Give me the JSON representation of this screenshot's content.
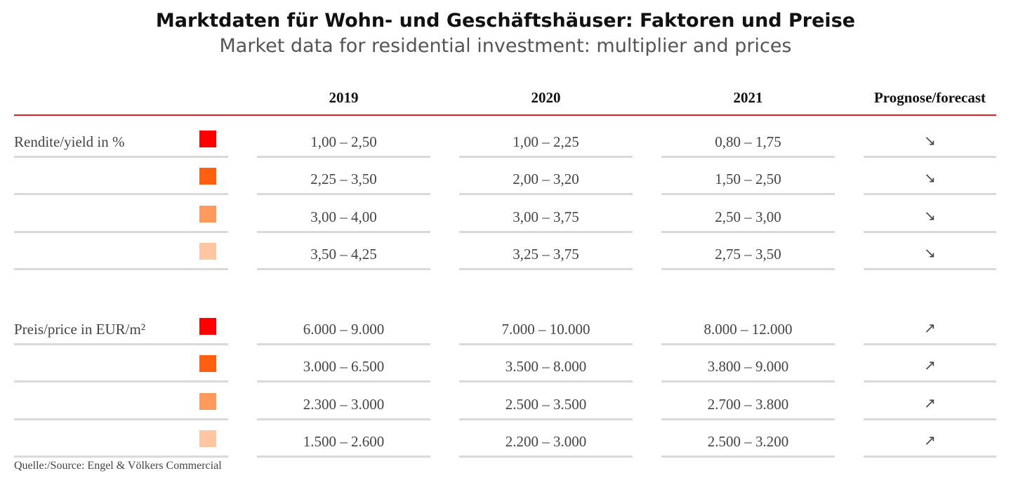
{
  "title": "Marktdaten für Wohn- und Geschäftshäuser: Faktoren und Preise",
  "subtitle": "Market data for residential investment: multiplier and prices",
  "columns": [
    "2019",
    "2020",
    "2021",
    "Prognose/forecast"
  ],
  "swatch_colors": [
    "#ff0000",
    "#ff5f0f",
    "#ff9a5c",
    "#ffc6a2"
  ],
  "sections": [
    {
      "label": "Rendite/yield in %",
      "rows": [
        {
          "values": [
            "1,00 – 2,50",
            "1,00 – 2,25",
            "0,80 – 1,75"
          ],
          "trend": "↘"
        },
        {
          "values": [
            "2,25 – 3,50",
            "2,00 – 3,20",
            "1,50 – 2,50"
          ],
          "trend": "↘"
        },
        {
          "values": [
            "3,00 – 4,00",
            "3,00 – 3,75",
            "2,50 – 3,00"
          ],
          "trend": "↘"
        },
        {
          "values": [
            "3,50 – 4,25",
            "3,25 – 3,75",
            "2,75 – 3,50"
          ],
          "trend": "↘"
        }
      ]
    },
    {
      "label": "Preis/price in EUR/m²",
      "rows": [
        {
          "values": [
            "6.000 – 9.000",
            "7.000 – 10.000",
            "8.000 – 12.000"
          ],
          "trend": "↗"
        },
        {
          "values": [
            "3.000 – 6.500",
            "3.500 – 8.000",
            "3.800 – 9.000"
          ],
          "trend": "↗"
        },
        {
          "values": [
            "2.300 – 3.000",
            "2.500 – 3.500",
            "2.700 – 3.800"
          ],
          "trend": "↗"
        },
        {
          "values": [
            "1.500 – 2.600",
            "2.200 – 3.000",
            "2.500 – 3.200"
          ],
          "trend": "↗"
        }
      ]
    }
  ],
  "source": "Quelle:/Source: Engel & Völkers Commercial"
}
